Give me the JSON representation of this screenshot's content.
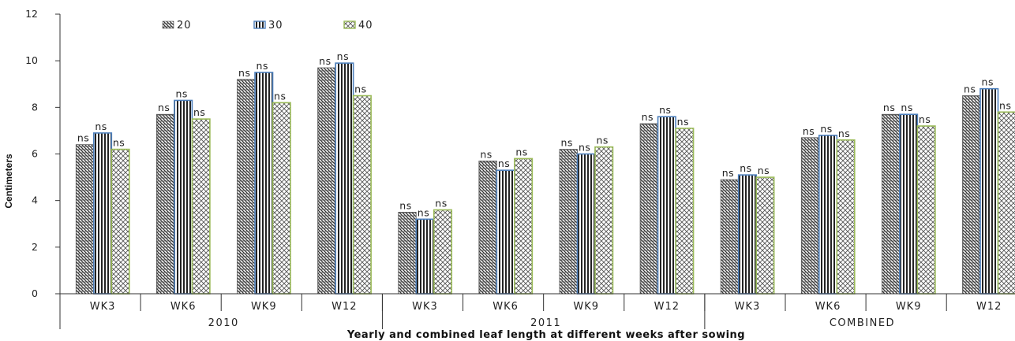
{
  "chart_data": {
    "type": "bar",
    "ylabel": "Centimeters",
    "xlabel": "Yearly and combined leaf length at different weeks after sowing",
    "ylim": [
      0,
      12
    ],
    "yticks": [
      "0",
      "2",
      "4",
      "6",
      "8",
      "10",
      "12"
    ],
    "groups": [
      {
        "label": "2010",
        "categories": [
          "WK3",
          "WK6",
          "WK9",
          "W12"
        ]
      },
      {
        "label": "2011",
        "categories": [
          "WK3",
          "WK6",
          "WK9",
          "W12"
        ]
      },
      {
        "label": "COMBINED",
        "categories": [
          "WK3",
          "WK6",
          "WK9",
          "W12"
        ]
      }
    ],
    "series": [
      {
        "name": "20",
        "values": [
          6.4,
          7.7,
          9.2,
          9.7,
          3.5,
          5.7,
          6.2,
          7.3,
          4.9,
          6.7,
          7.7,
          8.5
        ],
        "labels": [
          "ns",
          "ns",
          "ns",
          "ns",
          "ns",
          "ns",
          "ns",
          "ns",
          "ns",
          "ns",
          "ns",
          "ns"
        ]
      },
      {
        "name": "30",
        "values": [
          6.9,
          8.3,
          9.5,
          9.9,
          3.2,
          5.3,
          6.0,
          7.6,
          5.1,
          6.8,
          7.7,
          8.8
        ],
        "labels": [
          "ns",
          "ns",
          "ns",
          "ns",
          "ns",
          "ns",
          "ns",
          "ns",
          "ns",
          "ns",
          "ns",
          "ns"
        ]
      },
      {
        "name": "40",
        "values": [
          6.2,
          7.5,
          8.2,
          8.5,
          3.6,
          5.8,
          6.3,
          7.1,
          5.0,
          6.6,
          7.2,
          7.8
        ],
        "labels": [
          "ns",
          "ns",
          "ns",
          "ns",
          "ns",
          "ns",
          "ns",
          "ns",
          "ns",
          "ns",
          "ns",
          "ns"
        ]
      }
    ],
    "legend_position": "top-left",
    "grid": false
  },
  "colors": {
    "series_20": "#555555",
    "series_30_border": "#4f81bd",
    "series_40_border": "#9bbb59",
    "axis": "#333333"
  }
}
